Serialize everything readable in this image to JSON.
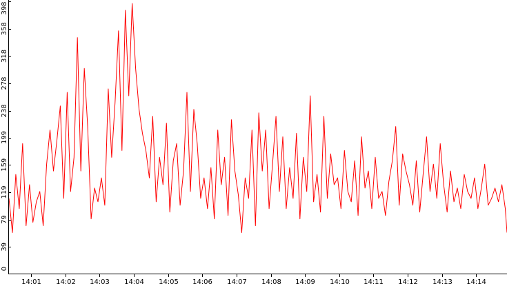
{
  "chart_data": {
    "type": "line",
    "title": "",
    "xlabel": "",
    "ylabel": "",
    "ylim": [
      0,
      398
    ],
    "y_ticks": [
      0,
      39,
      79,
      119,
      159,
      199,
      238,
      278,
      318,
      358,
      398
    ],
    "x_ticks": [
      "14:01",
      "14:02",
      "14:03",
      "14:04",
      "14:05",
      "14:06",
      "14:07",
      "14:08",
      "14:09",
      "14:10",
      "14:11",
      "14:12",
      "14:13",
      "14:14"
    ],
    "x_tick_positions_minutes": [
      1,
      2,
      3,
      4,
      5,
      6,
      7,
      8,
      9,
      10,
      11,
      12,
      13,
      14
    ],
    "x_range_minutes": [
      0.35,
      14.9
    ],
    "grid": false,
    "legend": "none",
    "series": [
      {
        "color": "#ff0000",
        "x_minutes": [
          0.35,
          0.45,
          0.55,
          0.65,
          0.75,
          0.85,
          0.95,
          1.05,
          1.15,
          1.25,
          1.35,
          1.45,
          1.55,
          1.65,
          1.75,
          1.85,
          1.95,
          2.05,
          2.15,
          2.25,
          2.35,
          2.45,
          2.55,
          2.65,
          2.75,
          2.85,
          2.95,
          3.05,
          3.15,
          3.25,
          3.35,
          3.45,
          3.55,
          3.65,
          3.75,
          3.85,
          3.95,
          4.05,
          4.15,
          4.25,
          4.35,
          4.45,
          4.55,
          4.65,
          4.75,
          4.85,
          4.95,
          5.05,
          5.15,
          5.25,
          5.35,
          5.45,
          5.55,
          5.65,
          5.75,
          5.85,
          5.95,
          6.05,
          6.15,
          6.25,
          6.35,
          6.45,
          6.55,
          6.65,
          6.75,
          6.85,
          6.95,
          7.05,
          7.15,
          7.25,
          7.35,
          7.45,
          7.55,
          7.65,
          7.75,
          7.85,
          7.95,
          8.05,
          8.15,
          8.25,
          8.35,
          8.45,
          8.55,
          8.65,
          8.75,
          8.85,
          8.95,
          9.05,
          9.15,
          9.25,
          9.35,
          9.45,
          9.55,
          9.65,
          9.75,
          9.85,
          9.95,
          10.05,
          10.15,
          10.25,
          10.35,
          10.45,
          10.55,
          10.65,
          10.75,
          10.85,
          10.95,
          11.05,
          11.15,
          11.25,
          11.35,
          11.45,
          11.55,
          11.65,
          11.75,
          11.85,
          11.95,
          12.05,
          12.15,
          12.25,
          12.35,
          12.45,
          12.55,
          12.65,
          12.75,
          12.85,
          12.95,
          13.05,
          13.15,
          13.25,
          13.35,
          13.45,
          13.55,
          13.65,
          13.75,
          13.85,
          13.95,
          14.05,
          14.15,
          14.25,
          14.35,
          14.45,
          14.55,
          14.65,
          14.75,
          14.85,
          14.9
        ],
        "values": [
          110,
          60,
          145,
          95,
          190,
          70,
          130,
          75,
          105,
          120,
          70,
          160,
          210,
          150,
          195,
          245,
          110,
          265,
          120,
          170,
          345,
          150,
          300,
          215,
          80,
          125,
          105,
          140,
          100,
          270,
          170,
          250,
          355,
          180,
          385,
          260,
          395,
          300,
          240,
          205,
          180,
          140,
          230,
          105,
          170,
          130,
          220,
          90,
          165,
          190,
          100,
          150,
          265,
          120,
          240,
          190,
          110,
          140,
          95,
          155,
          80,
          210,
          130,
          170,
          85,
          225,
          150,
          115,
          60,
          140,
          110,
          210,
          70,
          235,
          150,
          210,
          95,
          160,
          230,
          120,
          200,
          95,
          155,
          110,
          205,
          80,
          170,
          120,
          260,
          105,
          145,
          90,
          230,
          110,
          175,
          130,
          140,
          95,
          180,
          120,
          105,
          165,
          85,
          200,
          125,
          150,
          95,
          170,
          110,
          120,
          85,
          135,
          165,
          215,
          100,
          175,
          150,
          130,
          100,
          165,
          90,
          145,
          200,
          120,
          160,
          110,
          190,
          130,
          90,
          150,
          105,
          125,
          95,
          145,
          120,
          110,
          140,
          95,
          125,
          160,
          100,
          110,
          125,
          105,
          130,
          95,
          60
        ]
      }
    ]
  }
}
